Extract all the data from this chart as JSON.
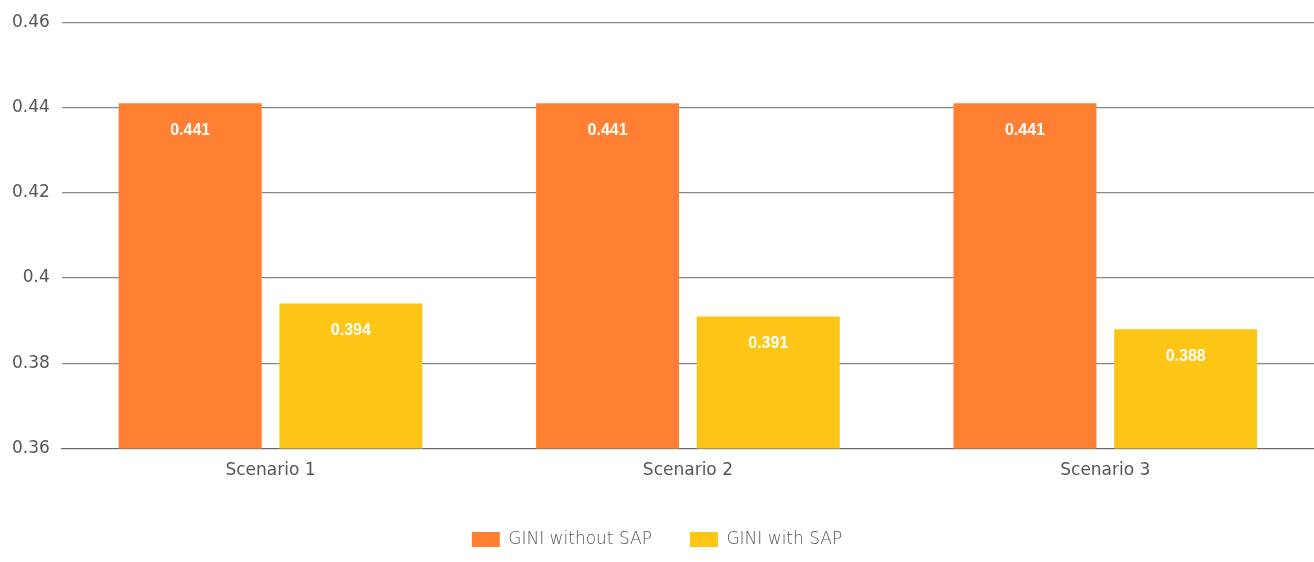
{
  "chart_data": {
    "type": "bar",
    "categories": [
      "Scenario 1",
      "Scenario 2",
      "Scenario 3"
    ],
    "series": [
      {
        "name": "GINI without SAP",
        "color": "#ff8033",
        "values": [
          0.441,
          0.441,
          0.441
        ]
      },
      {
        "name": "GINI with SAP",
        "color": "#fdc616",
        "values": [
          0.394,
          0.391,
          0.388
        ]
      }
    ],
    "ylim": [
      0.36,
      0.46
    ],
    "yticks": [
      0.36,
      0.38,
      {
        "value": 0.4,
        "label": "0.4"
      },
      0.42,
      0.44,
      0.46
    ],
    "grid": "y",
    "legend": "bottom",
    "data_labels": true
  }
}
